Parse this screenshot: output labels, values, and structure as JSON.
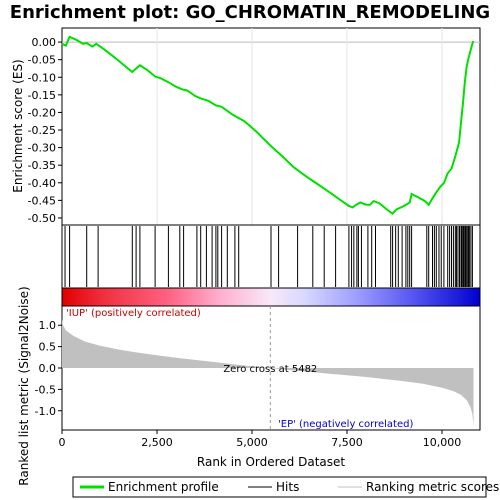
{
  "chart_data": {
    "type": "line",
    "title": "Enrichment plot: GO_CHROMATIN_REMODELING",
    "xlabel": "Rank in Ordered Dataset",
    "ylabel_top": "Enrichment score (ES)",
    "ylabel_bottom": "Ranked list metric (Signal2Noise)",
    "xlim": [
      0,
      11000
    ],
    "ylim_es": [
      -0.52,
      0.04
    ],
    "ylim_metric": [
      -1.45,
      1.45
    ],
    "x_ticks": [
      0,
      2500,
      5000,
      7500,
      10000
    ],
    "x_tick_labels": [
      "0",
      "2,500",
      "5,000",
      "7,500",
      "10,000"
    ],
    "es_ticks": [
      0.0,
      -0.05,
      -0.1,
      -0.15,
      -0.2,
      -0.25,
      -0.3,
      -0.35,
      -0.4,
      -0.45,
      -0.5
    ],
    "es_tick_labels": [
      "0.00",
      "-0.05",
      "-0.10",
      "-0.15",
      "-0.20",
      "-0.25",
      "-0.30",
      "-0.35",
      "-0.40",
      "-0.45",
      "-0.50"
    ],
    "metric_ticks": [
      1.0,
      0.5,
      0.0,
      -0.5,
      -1.0
    ],
    "metric_tick_labels": [
      "1.0",
      "0.5",
      "0.0",
      "-0.5",
      "-1.0"
    ],
    "es_curve": [
      [
        0,
        -0.005
      ],
      [
        100,
        -0.01
      ],
      [
        200,
        0.015
      ],
      [
        400,
        0.005
      ],
      [
        550,
        -0.005
      ],
      [
        650,
        -0.003
      ],
      [
        800,
        -0.013
      ],
      [
        900,
        -0.005
      ],
      [
        1100,
        -0.02
      ],
      [
        1400,
        -0.045
      ],
      [
        1700,
        -0.072
      ],
      [
        1850,
        -0.085
      ],
      [
        1950,
        -0.075
      ],
      [
        2050,
        -0.066
      ],
      [
        2250,
        -0.08
      ],
      [
        2450,
        -0.098
      ],
      [
        2600,
        -0.103
      ],
      [
        2800,
        -0.114
      ],
      [
        3000,
        -0.127
      ],
      [
        3150,
        -0.134
      ],
      [
        3300,
        -0.138
      ],
      [
        3500,
        -0.153
      ],
      [
        3650,
        -0.16
      ],
      [
        3850,
        -0.167
      ],
      [
        4050,
        -0.18
      ],
      [
        4200,
        -0.184
      ],
      [
        4500,
        -0.207
      ],
      [
        4800,
        -0.225
      ],
      [
        5100,
        -0.253
      ],
      [
        5482,
        -0.294
      ],
      [
        5800,
        -0.325
      ],
      [
        6100,
        -0.356
      ],
      [
        6400,
        -0.38
      ],
      [
        6700,
        -0.402
      ],
      [
        7000,
        -0.424
      ],
      [
        7300,
        -0.447
      ],
      [
        7550,
        -0.466
      ],
      [
        7650,
        -0.47
      ],
      [
        7750,
        -0.462
      ],
      [
        7850,
        -0.456
      ],
      [
        8000,
        -0.462
      ],
      [
        8100,
        -0.463
      ],
      [
        8200,
        -0.452
      ],
      [
        8350,
        -0.458
      ],
      [
        8550,
        -0.476
      ],
      [
        8700,
        -0.488
      ],
      [
        8800,
        -0.476
      ],
      [
        9000,
        -0.466
      ],
      [
        9150,
        -0.456
      ],
      [
        9200,
        -0.432
      ],
      [
        9400,
        -0.443
      ],
      [
        9550,
        -0.452
      ],
      [
        9650,
        -0.463
      ],
      [
        9750,
        -0.444
      ],
      [
        9850,
        -0.427
      ],
      [
        9950,
        -0.412
      ],
      [
        10050,
        -0.401
      ],
      [
        10150,
        -0.373
      ],
      [
        10250,
        -0.36
      ],
      [
        10350,
        -0.325
      ],
      [
        10450,
        -0.285
      ],
      [
        10500,
        -0.228
      ],
      [
        10550,
        -0.176
      ],
      [
        10600,
        -0.115
      ],
      [
        10650,
        -0.069
      ],
      [
        10700,
        -0.045
      ],
      [
        10760,
        -0.02
      ],
      [
        10820,
        0.003
      ]
    ],
    "hits": [
      80,
      200,
      650,
      950,
      1850,
      1950,
      2050,
      2450,
      2800,
      3100,
      3200,
      3550,
      3650,
      3800,
      3950,
      4050,
      4100,
      4200,
      4350,
      4550,
      4650,
      5500,
      5700,
      6200,
      6600,
      6900,
      7200,
      7550,
      7620,
      7680,
      7760,
      7800,
      7880,
      8050,
      8150,
      8250,
      8650,
      8700,
      8780,
      8850,
      8950,
      9050,
      9100,
      9150,
      9200,
      9600,
      9650,
      9750,
      9800,
      9850,
      9920,
      9980,
      10050,
      10150,
      10200,
      10250,
      10300,
      10350,
      10380,
      10420,
      10460,
      10500,
      10520,
      10550,
      10570,
      10600,
      10620,
      10650,
      10680,
      10700,
      10720,
      10760,
      10800
    ],
    "metric_curve": [
      [
        0,
        1.15
      ],
      [
        30,
        1.0
      ],
      [
        100,
        0.88
      ],
      [
        300,
        0.75
      ],
      [
        600,
        0.62
      ],
      [
        1000,
        0.52
      ],
      [
        1500,
        0.43
      ],
      [
        2000,
        0.36
      ],
      [
        2500,
        0.3
      ],
      [
        3000,
        0.24
      ],
      [
        3500,
        0.19
      ],
      [
        4000,
        0.14
      ],
      [
        4500,
        0.09
      ],
      [
        5000,
        0.04
      ],
      [
        5482,
        0.0
      ],
      [
        6000,
        -0.05
      ],
      [
        6500,
        -0.09
      ],
      [
        7000,
        -0.13
      ],
      [
        7500,
        -0.17
      ],
      [
        8000,
        -0.21
      ],
      [
        8500,
        -0.26
      ],
      [
        9000,
        -0.31
      ],
      [
        9500,
        -0.37
      ],
      [
        10000,
        -0.46
      ],
      [
        10300,
        -0.54
      ],
      [
        10500,
        -0.63
      ],
      [
        10650,
        -0.75
      ],
      [
        10750,
        -0.92
      ],
      [
        10800,
        -1.08
      ],
      [
        10830,
        -1.35
      ]
    ],
    "zero_cross_label": "Zero cross at 5482",
    "zero_cross_x": 5482,
    "pos_label": "'IUP' (positively correlated)",
    "neg_label": "'EP' (negatively correlated)",
    "legend": [
      {
        "label": "Enrichment profile",
        "color": "#00e000"
      },
      {
        "label": "Hits",
        "color": "#000000"
      },
      {
        "label": "Ranking metric scores",
        "color": "#c0c0c0"
      }
    ],
    "colors": {
      "es_line": "#00e000",
      "hits": "#000000",
      "metric_fill": "#c0c0c0",
      "pos_text": "#cc0000",
      "neg_text": "#0000cc"
    }
  }
}
